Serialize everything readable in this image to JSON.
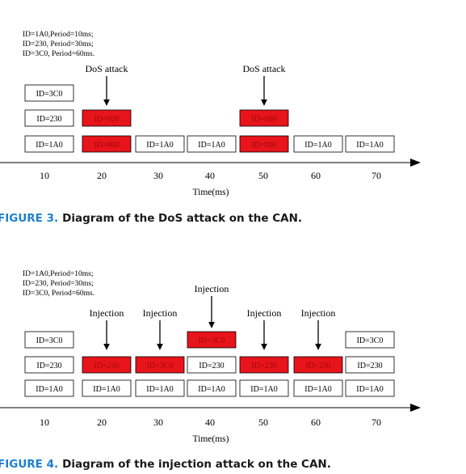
{
  "colors": {
    "attack_fill": "#e8141b",
    "normal_fill": "#ffffff",
    "caption_accent": "#1c7fd0",
    "caption_text": "#1a1a1a",
    "stroke": "#000000"
  },
  "diagrams": [
    {
      "key": "dos",
      "legend": [
        "ID=1A0,Period=10ms;",
        "ID=230, Period=30ms;",
        "ID=3C0, Period=60ms."
      ],
      "axis": {
        "ticks": [
          "10",
          "20",
          "30",
          "40",
          "50",
          "60",
          "70"
        ],
        "label": "Time(ms)"
      },
      "frames": [
        {
          "col": 0,
          "row": 2,
          "label": "ID=3C0",
          "attack": false
        },
        {
          "col": 0,
          "row": 1,
          "label": "ID=230",
          "attack": false
        },
        {
          "col": 0,
          "row": 0,
          "label": "ID=1A0",
          "attack": false
        },
        {
          "col": 1,
          "row": 1,
          "label": "ID=000",
          "attack": true
        },
        {
          "col": 1,
          "row": 0,
          "label": "ID=000",
          "attack": true
        },
        {
          "col": 2,
          "row": 0,
          "label": "ID=1A0",
          "attack": false
        },
        {
          "col": 3,
          "row": 0,
          "label": "ID=1A0",
          "attack": false
        },
        {
          "col": 4,
          "row": 1,
          "label": "ID=000",
          "attack": true
        },
        {
          "col": 4,
          "row": 0,
          "label": "ID=000",
          "attack": true
        },
        {
          "col": 5,
          "row": 0,
          "label": "ID=1A0",
          "attack": false
        },
        {
          "col": 6,
          "row": 0,
          "label": "ID=1A0",
          "attack": false
        }
      ],
      "arrows": [
        {
          "col": 1,
          "label": "DoS attack",
          "high": false
        },
        {
          "col": 4,
          "label": "DoS attack",
          "high": false
        }
      ],
      "caption": {
        "label": "FIGURE 3.",
        "text": "Diagram of the DoS attack on the CAN."
      }
    },
    {
      "key": "injection",
      "legend": [
        "ID=1A0,Period=10ms;",
        "ID=230, Period=30ms;",
        "ID=3C0, Period=60ms."
      ],
      "axis": {
        "ticks": [
          "10",
          "20",
          "30",
          "40",
          "50",
          "60",
          "70"
        ],
        "label": "Time(ms)"
      },
      "frames": [
        {
          "col": 0,
          "row": 2,
          "label": "ID=3C0",
          "attack": false
        },
        {
          "col": 0,
          "row": 1,
          "label": "ID=230",
          "attack": false
        },
        {
          "col": 0,
          "row": 0,
          "label": "ID=1A0",
          "attack": false
        },
        {
          "col": 1,
          "row": 1,
          "label": "ID=230",
          "attack": true
        },
        {
          "col": 1,
          "row": 0,
          "label": "ID=1A0",
          "attack": false
        },
        {
          "col": 2,
          "row": 1,
          "label": "ID=3C0",
          "attack": true
        },
        {
          "col": 2,
          "row": 0,
          "label": "ID=1A0",
          "attack": false
        },
        {
          "col": 3,
          "row": 2,
          "label": "ID=3C0",
          "attack": true
        },
        {
          "col": 3,
          "row": 1,
          "label": "ID=230",
          "attack": false
        },
        {
          "col": 3,
          "row": 0,
          "label": "ID=1A0",
          "attack": false
        },
        {
          "col": 4,
          "row": 1,
          "label": "ID=230",
          "attack": true
        },
        {
          "col": 4,
          "row": 0,
          "label": "ID=1A0",
          "attack": false
        },
        {
          "col": 5,
          "row": 1,
          "label": "ID=230",
          "attack": true
        },
        {
          "col": 5,
          "row": 0,
          "label": "ID=1A0",
          "attack": false
        },
        {
          "col": 6,
          "row": 2,
          "label": "ID=3C0",
          "attack": false
        },
        {
          "col": 6,
          "row": 1,
          "label": "ID=230",
          "attack": false
        },
        {
          "col": 6,
          "row": 0,
          "label": "ID=1A0",
          "attack": false
        }
      ],
      "arrows": [
        {
          "col": 1,
          "label": "Injection",
          "high": false
        },
        {
          "col": 2,
          "label": "Injection",
          "high": false
        },
        {
          "col": 3,
          "label": "Injection",
          "high": true
        },
        {
          "col": 4,
          "label": "Injection",
          "high": false
        },
        {
          "col": 5,
          "label": "Injection",
          "high": false
        }
      ],
      "caption": {
        "label": "FIGURE 4.",
        "text": "Diagram of the injection attack on the CAN."
      }
    }
  ]
}
